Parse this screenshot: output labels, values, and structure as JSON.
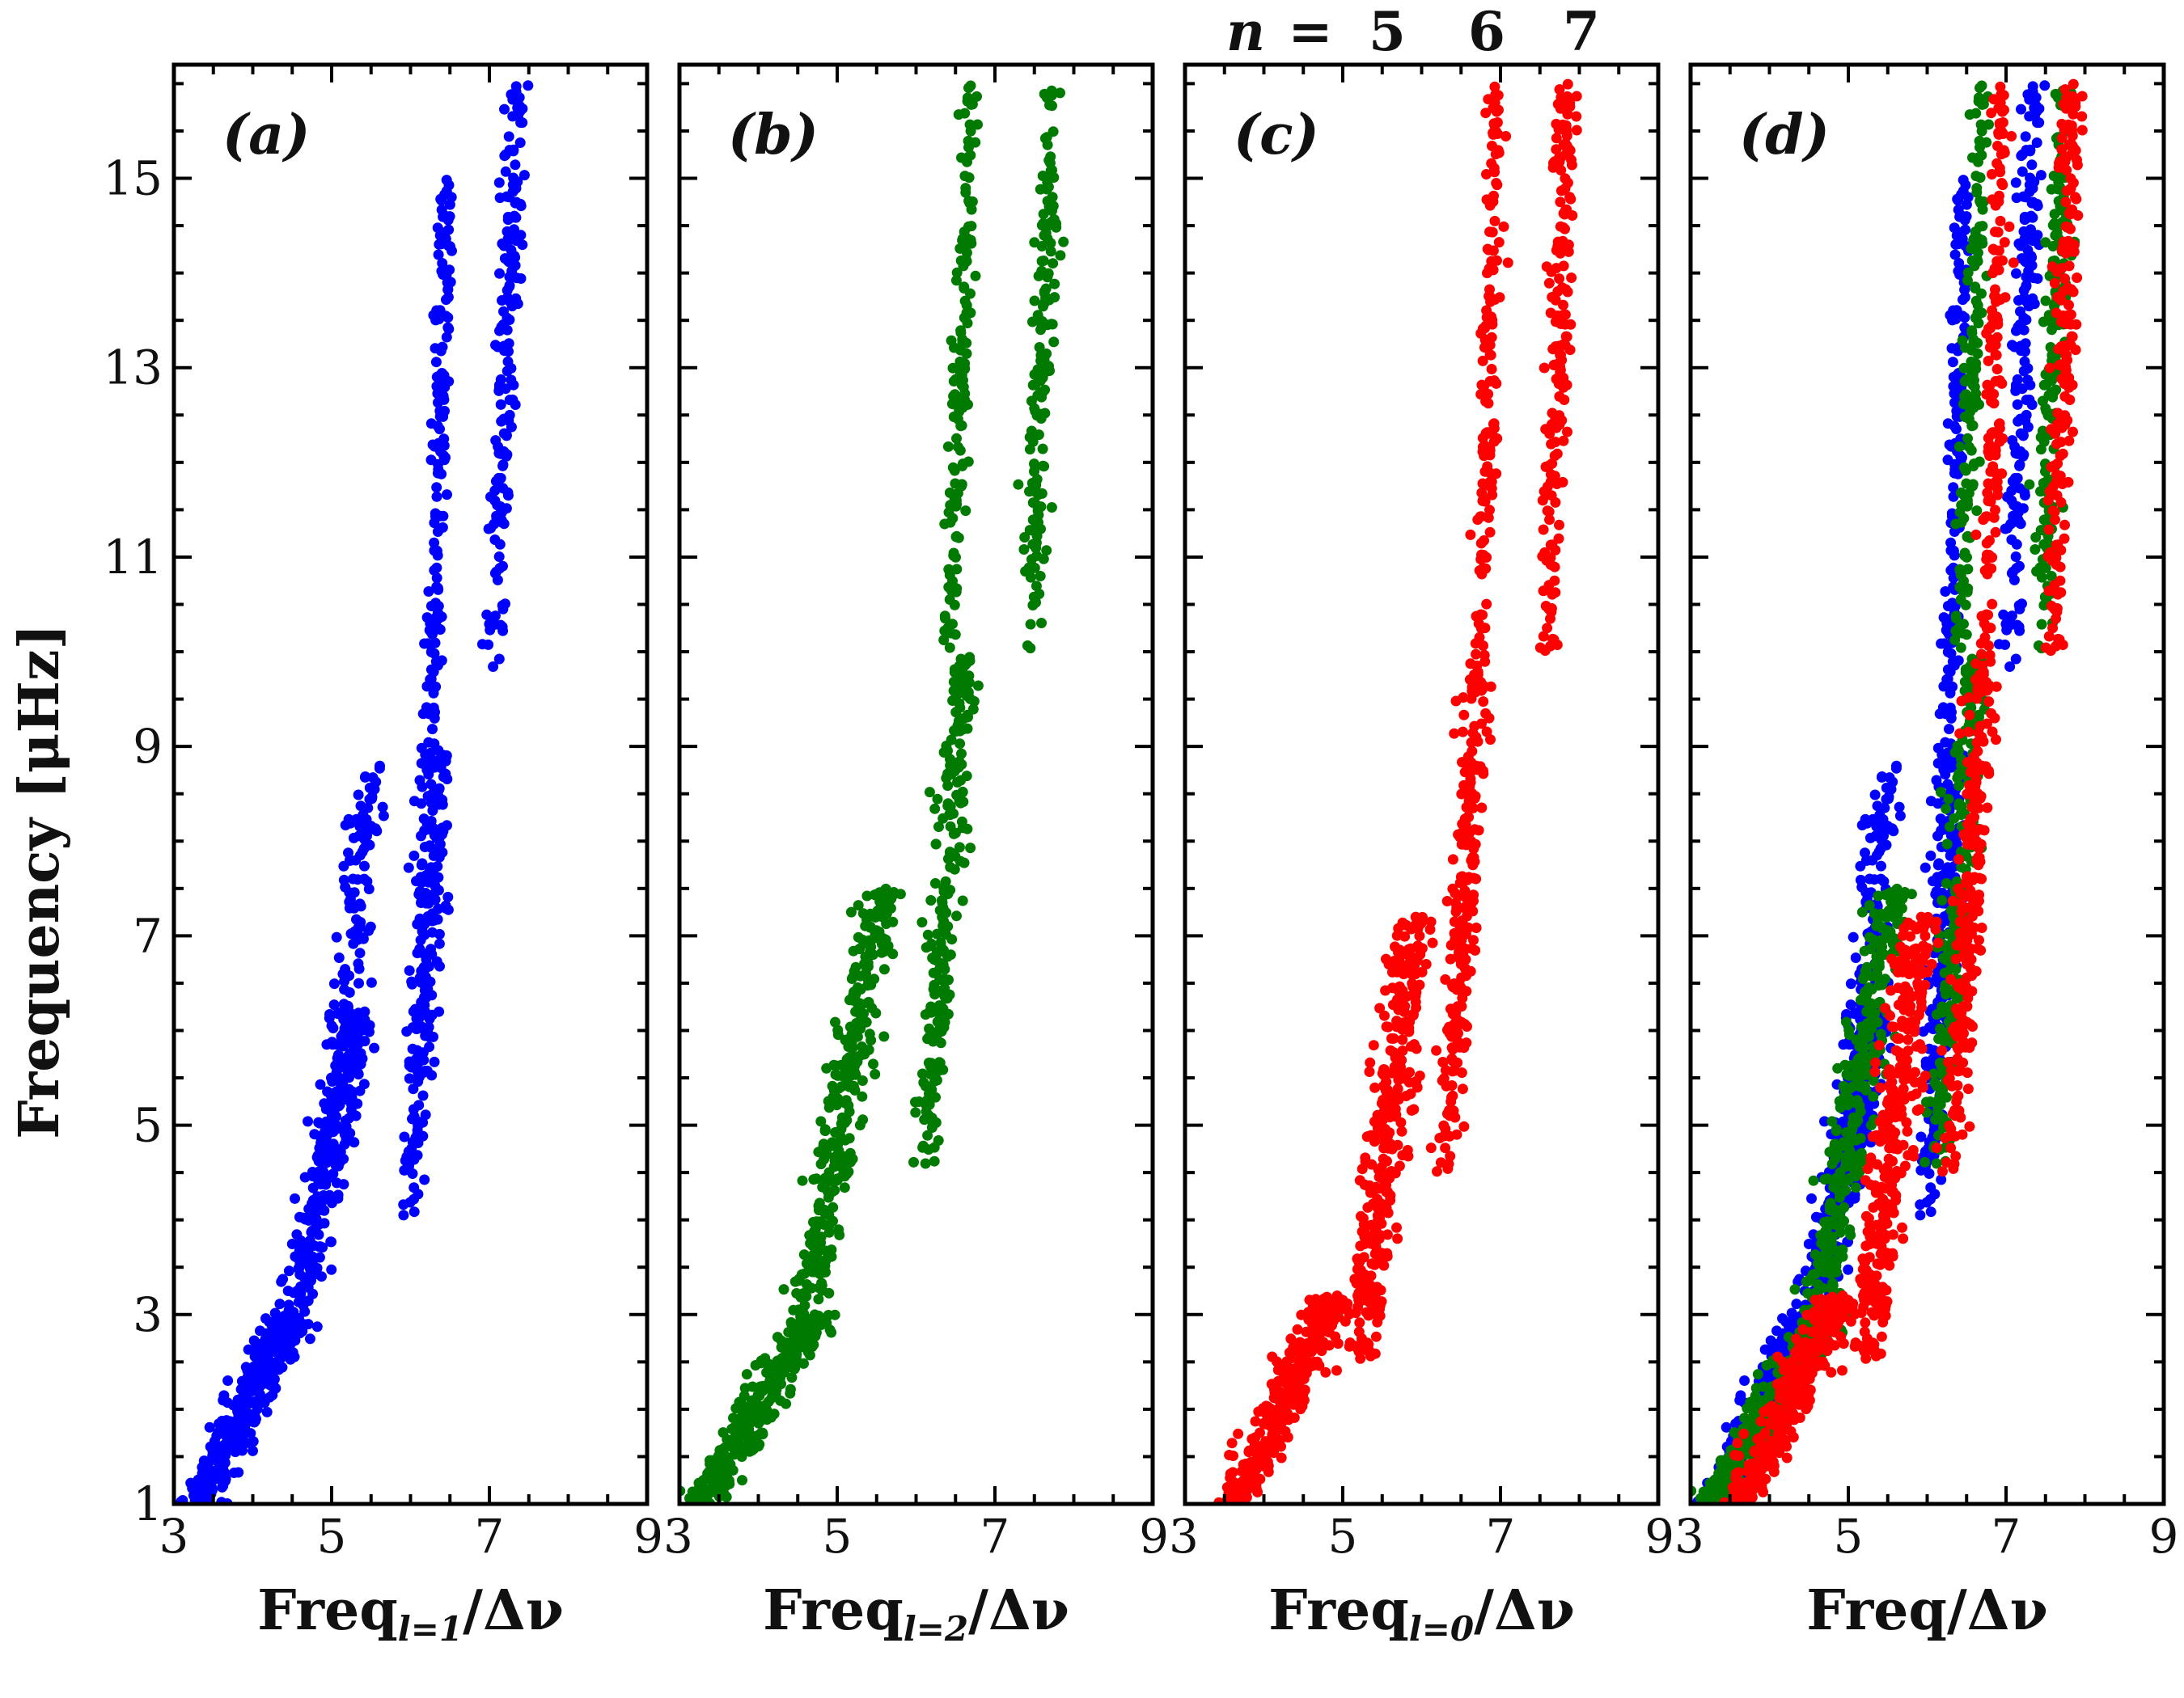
{
  "figure": {
    "ylabel": "Frequency [μHz]",
    "top_annotation": {
      "prefix": "n",
      "equals": "=",
      "values": [
        "5",
        "6",
        "7"
      ]
    }
  },
  "chart_data": [
    {
      "type": "scatter",
      "panel_label": "(a)",
      "xlabel_main": "Freq",
      "xlabel_sub": "l=1",
      "xlabel_tail": "/Δν",
      "xlim": [
        3,
        9
      ],
      "ylim": [
        1,
        16.2
      ],
      "xticks": [
        "3",
        "5",
        "7",
        "9"
      ],
      "yticks": [
        "1",
        "3",
        "5",
        "7",
        "9",
        "11",
        "13",
        "15"
      ],
      "color": "#0000ff",
      "series": [
        {
          "name": "l=1",
          "color": "#0000ff",
          "ridges": [
            {
              "x0": 3.3,
              "x1": 4.5,
              "y0": 1.0,
              "y1": 3.0,
              "spread": 0.25,
              "count": 360
            },
            {
              "x0": 4.5,
              "x1": 5.35,
              "y0": 3.0,
              "y1": 6.2,
              "spread": 0.22,
              "count": 300
            },
            {
              "x0": 5.1,
              "x1": 5.5,
              "y0": 5.8,
              "y1": 8.8,
              "spread": 0.18,
              "count": 110
            },
            {
              "x0": 6.0,
              "x1": 6.35,
              "y0": 4.0,
              "y1": 9.0,
              "spread": 0.18,
              "count": 240
            },
            {
              "x0": 6.25,
              "x1": 6.45,
              "y0": 9.0,
              "y1": 15.0,
              "spread": 0.1,
              "count": 150
            },
            {
              "x0": 7.05,
              "x1": 7.35,
              "y0": 9.8,
              "y1": 16.0,
              "spread": 0.12,
              "count": 180
            }
          ]
        }
      ]
    },
    {
      "type": "scatter",
      "panel_label": "(b)",
      "xlabel_main": "Freq",
      "xlabel_sub": "l=2",
      "xlabel_tail": "/Δν",
      "xlim": [
        3,
        9
      ],
      "ylim": [
        1,
        16.2
      ],
      "xticks": [
        "3",
        "5",
        "7",
        "9"
      ],
      "yticks": [
        "1",
        "3",
        "5",
        "7",
        "9",
        "11",
        "13",
        "15"
      ],
      "color": "#007a00",
      "series": [
        {
          "name": "l=2",
          "color": "#007a00",
          "ridges": [
            {
              "x0": 3.3,
              "x1": 4.7,
              "y0": 1.0,
              "y1": 3.0,
              "spread": 0.25,
              "count": 320
            },
            {
              "x0": 4.6,
              "x1": 5.55,
              "y0": 3.0,
              "y1": 7.5,
              "spread": 0.25,
              "count": 320
            },
            {
              "x0": 6.1,
              "x1": 6.6,
              "y0": 4.5,
              "y1": 10.0,
              "spread": 0.16,
              "count": 240
            },
            {
              "x0": 6.45,
              "x1": 6.7,
              "y0": 10.0,
              "y1": 16.0,
              "spread": 0.1,
              "count": 150
            },
            {
              "x0": 7.45,
              "x1": 7.75,
              "y0": 10.0,
              "y1": 16.0,
              "spread": 0.13,
              "count": 170
            }
          ]
        }
      ]
    },
    {
      "type": "scatter",
      "panel_label": "(c)",
      "xlabel_main": "Freq",
      "xlabel_sub": "l=0",
      "xlabel_tail": "/Δν",
      "xlim": [
        3,
        9
      ],
      "ylim": [
        1,
        16.2
      ],
      "xticks": [
        "3",
        "5",
        "7",
        "9"
      ],
      "yticks": [
        "1",
        "3",
        "5",
        "7",
        "9",
        "11",
        "13",
        "15"
      ],
      "color": "#ff0000",
      "series": [
        {
          "name": "l=0",
          "color": "#ff0000",
          "ridges": [
            {
              "x0": 3.6,
              "x1": 4.9,
              "y0": 1.0,
              "y1": 3.2,
              "spread": 0.25,
              "count": 330
            },
            {
              "x0": 5.2,
              "x1": 5.9,
              "y0": 2.5,
              "y1": 7.2,
              "spread": 0.24,
              "count": 330
            },
            {
              "x0": 6.3,
              "x1": 6.75,
              "y0": 4.5,
              "y1": 10.0,
              "spread": 0.16,
              "count": 240
            },
            {
              "x0": 6.75,
              "x1": 6.95,
              "y0": 10.0,
              "y1": 16.0,
              "spread": 0.1,
              "count": 150
            },
            {
              "x0": 7.6,
              "x1": 7.85,
              "y0": 10.0,
              "y1": 16.0,
              "spread": 0.13,
              "count": 180
            }
          ]
        }
      ]
    },
    {
      "type": "scatter",
      "panel_label": "(d)",
      "xlabel_main": "Freq/Δν",
      "xlabel_sub": "",
      "xlabel_tail": "",
      "xlim": [
        3,
        9
      ],
      "ylim": [
        1,
        16.2
      ],
      "xticks": [
        "3",
        "5",
        "7",
        "9"
      ],
      "yticks": [
        "1",
        "3",
        "5",
        "7",
        "9",
        "11",
        "13",
        "15"
      ],
      "series": [
        {
          "name": "l=1",
          "color": "#0000ff",
          "ref": 0
        },
        {
          "name": "l=2",
          "color": "#007a00",
          "ref": 1
        },
        {
          "name": "l=0",
          "color": "#ff0000",
          "ref": 2
        }
      ]
    }
  ]
}
